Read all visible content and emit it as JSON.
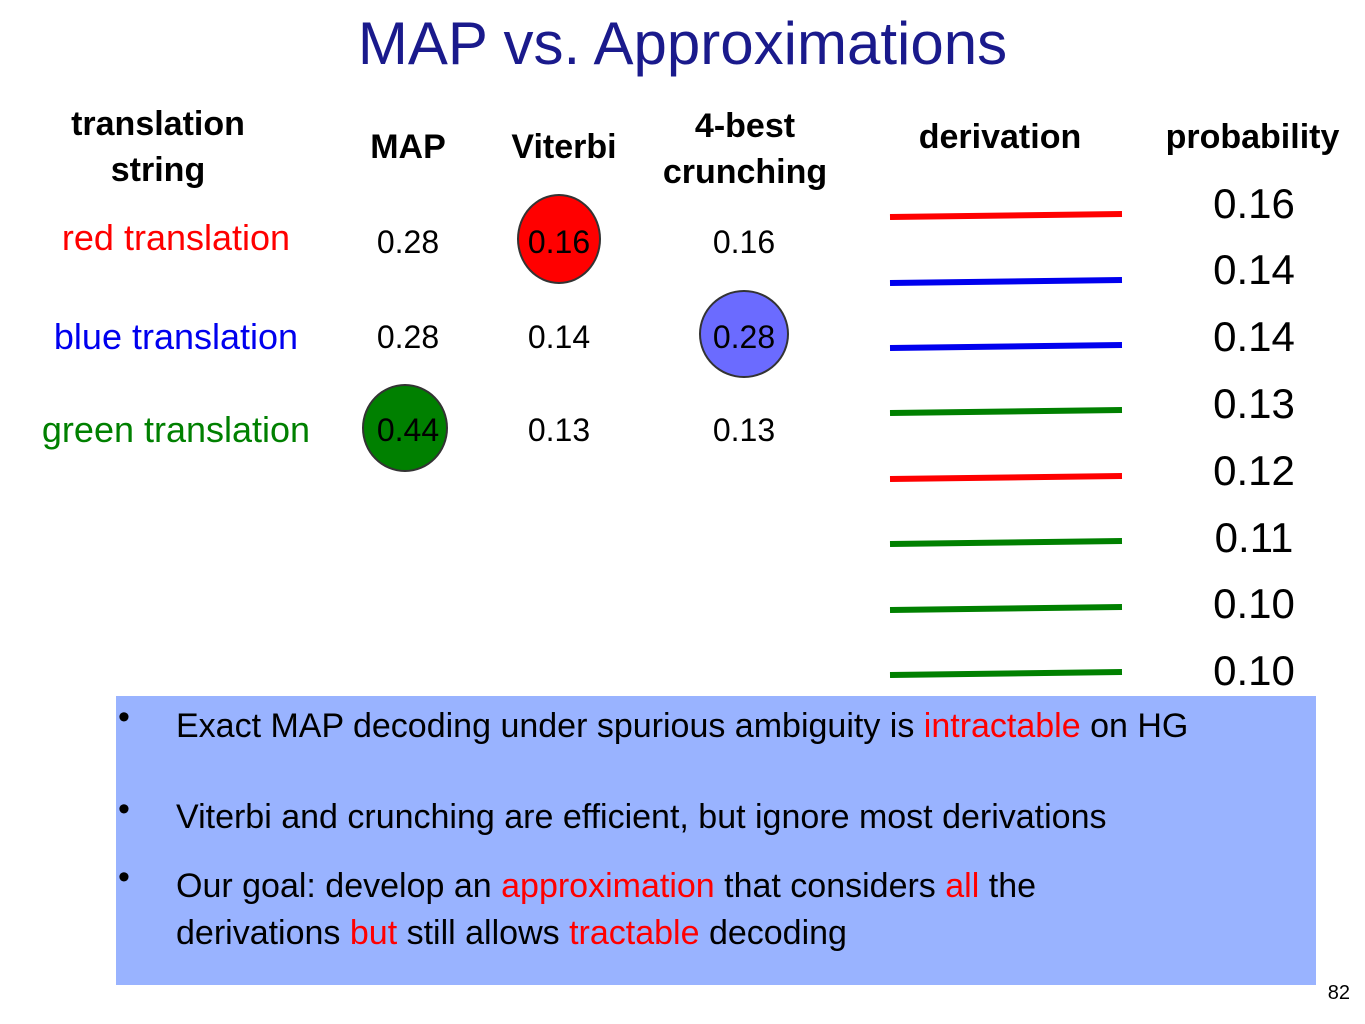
{
  "title": "MAP vs.  Approximations",
  "headers": {
    "translation_line1": "translation",
    "translation_line2": "string",
    "map": "MAP",
    "viterbi": "Viterbi",
    "crunch_line1": "4-best",
    "crunch_line2": "crunching",
    "derivation": "derivation",
    "probability": "probability"
  },
  "colors": {
    "red": "#ff0000",
    "blue": "#0000ee",
    "green": "#008000",
    "blue_circle": "#6b6bff",
    "panel": "#99b3ff",
    "title": "#1a1a8c"
  },
  "rows": [
    {
      "label": "red translation",
      "color": "red",
      "map": "0.28",
      "viterbi": "0.16",
      "crunching": "0.16"
    },
    {
      "label": "blue translation",
      "color": "blue",
      "map": "0.28",
      "viterbi": "0.14",
      "crunching": "0.28"
    },
    {
      "label": "green translation",
      "color": "green",
      "map": "0.44",
      "viterbi": "0.13",
      "crunching": "0.13"
    }
  ],
  "derivations": [
    {
      "color": "red",
      "probability": "0.16"
    },
    {
      "color": "blue",
      "probability": "0.14"
    },
    {
      "color": "blue",
      "probability": "0.14"
    },
    {
      "color": "green",
      "probability": "0.13"
    },
    {
      "color": "red",
      "probability": "0.12"
    },
    {
      "color": "green",
      "probability": "0.11"
    },
    {
      "color": "green",
      "probability": "0.10"
    },
    {
      "color": "green",
      "probability": "0.10"
    }
  ],
  "bullets": {
    "b1_a": "Exact MAP decoding under spurious ambiguity is",
    "b1_red": "intractable",
    "b1_b": "on HG",
    "b2": "Viterbi and crunching are efficient, but ignore most derivations",
    "b3_a": "Our goal:  develop an",
    "b3_red1": "approximation",
    "b3_b": "that considers",
    "b3_red2": "all",
    "b3_c": "the derivations",
    "b3_red3": "but",
    "b3_d": "still allows",
    "b3_red4": "tractable",
    "b3_e": "decoding"
  },
  "slide_number": "82"
}
